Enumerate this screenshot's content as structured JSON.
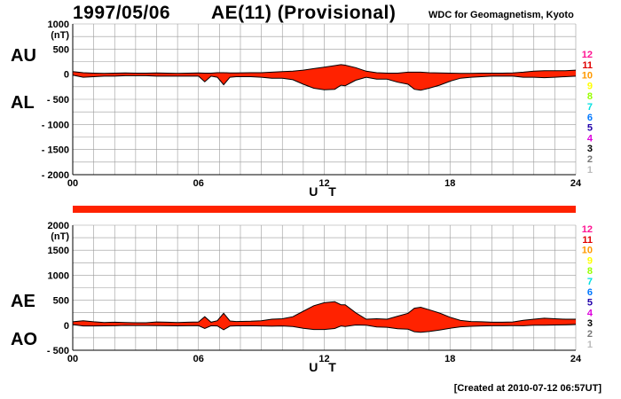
{
  "header": {
    "date": "1997/05/06",
    "title": "AE(11) (Provisional)",
    "source": "WDC for Geomagnetism, Kyoto",
    "created": "[Created at 2010-07-12 06:57UT]"
  },
  "colors": {
    "fill": "#ff2200",
    "grid": "#9a9a9a",
    "line": "#000000"
  },
  "station_legend": [
    {
      "label": "12",
      "color": "#ff1493"
    },
    {
      "label": "11",
      "color": "#e00000"
    },
    {
      "label": "10",
      "color": "#ff9900"
    },
    {
      "label": "9",
      "color": "#ffff00"
    },
    {
      "label": "8",
      "color": "#99ff00"
    },
    {
      "label": "7",
      "color": "#00e0e0"
    },
    {
      "label": "6",
      "color": "#0077ff"
    },
    {
      "label": "5",
      "color": "#2200aa"
    },
    {
      "label": "4",
      "color": "#dd00dd"
    },
    {
      "label": "3",
      "color": "#000000"
    },
    {
      "label": "2",
      "color": "#777777"
    },
    {
      "label": "1",
      "color": "#bbbbbb"
    }
  ],
  "chart_data": [
    {
      "type": "area",
      "unit": "(nT)",
      "xlabel": "U T",
      "xlim": [
        0,
        24
      ],
      "xticks": [
        "00",
        "06",
        "12",
        "18",
        "24"
      ],
      "ylim": [
        -2000,
        1000
      ],
      "yticks": [
        {
          "value": 1000,
          "label": "1000"
        },
        {
          "value": 500,
          "label": "500"
        },
        {
          "value": 0,
          "label": "0"
        },
        {
          "value": -500,
          "label": "- 500"
        },
        {
          "value": -1000,
          "label": "- 1000"
        },
        {
          "value": -1500,
          "label": "- 1500"
        },
        {
          "value": -2000,
          "label": "- 2000"
        }
      ],
      "upper_label": "AU",
      "lower_label": "AL",
      "x": [
        0,
        0.5,
        1,
        1.5,
        2,
        2.5,
        3,
        3.5,
        4,
        4.5,
        5,
        5.5,
        6,
        6.3,
        6.6,
        6.9,
        7.2,
        7.5,
        7.8,
        8.5,
        9,
        9.5,
        10,
        10.5,
        11,
        11.5,
        12,
        12.5,
        12.8,
        13,
        13.5,
        14,
        14.5,
        15,
        15.5,
        16,
        16.3,
        16.6,
        17,
        17.5,
        18,
        18.5,
        19,
        19.5,
        20,
        20.5,
        21,
        21.5,
        22,
        22.5,
        23,
        23.5,
        24
      ],
      "series": [
        {
          "name": "AU",
          "values": [
            50,
            30,
            20,
            15,
            20,
            25,
            20,
            20,
            25,
            20,
            15,
            20,
            25,
            20,
            20,
            30,
            30,
            25,
            25,
            30,
            30,
            40,
            50,
            60,
            80,
            110,
            140,
            170,
            190,
            180,
            130,
            60,
            30,
            20,
            20,
            40,
            40,
            40,
            30,
            25,
            20,
            15,
            15,
            20,
            20,
            20,
            25,
            40,
            60,
            70,
            70,
            70,
            80
          ]
        },
        {
          "name": "AL",
          "values": [
            -20,
            -60,
            -50,
            -40,
            -40,
            -30,
            -30,
            -30,
            -40,
            -40,
            -40,
            -40,
            -40,
            -150,
            -40,
            -60,
            -210,
            -60,
            -50,
            -50,
            -60,
            -80,
            -80,
            -110,
            -200,
            -280,
            -310,
            -300,
            -220,
            -230,
            -120,
            -60,
            -100,
            -100,
            -160,
            -200,
            -300,
            -320,
            -280,
            -220,
            -140,
            -80,
            -60,
            -50,
            -40,
            -40,
            -40,
            -60,
            -60,
            -70,
            -60,
            -50,
            -40
          ]
        }
      ]
    },
    {
      "type": "area",
      "unit": "(nT)",
      "xlabel": "U T",
      "xlim": [
        0,
        24
      ],
      "xticks": [
        "00",
        "06",
        "12",
        "18",
        "24"
      ],
      "ylim": [
        -500,
        2000
      ],
      "yticks": [
        {
          "value": 2000,
          "label": "2000"
        },
        {
          "value": 1500,
          "label": "1500"
        },
        {
          "value": 1000,
          "label": "1000"
        },
        {
          "value": 500,
          "label": "500"
        },
        {
          "value": 0,
          "label": "0"
        },
        {
          "value": -500,
          "label": "- 500"
        }
      ],
      "upper_label": "AE",
      "lower_label": "AO",
      "x": [
        0,
        0.5,
        1,
        1.5,
        2,
        2.5,
        3,
        3.5,
        4,
        4.5,
        5,
        5.5,
        6,
        6.3,
        6.6,
        6.9,
        7.2,
        7.5,
        7.8,
        8.5,
        9,
        9.5,
        10,
        10.5,
        11,
        11.5,
        12,
        12.5,
        12.8,
        13,
        13.5,
        14,
        14.5,
        15,
        15.5,
        16,
        16.3,
        16.6,
        17,
        17.5,
        18,
        18.5,
        19,
        19.5,
        20,
        20.5,
        21,
        21.5,
        22,
        22.5,
        23,
        23.5,
        24
      ],
      "series": [
        {
          "name": "AE",
          "values": [
            70,
            90,
            70,
            55,
            60,
            55,
            50,
            50,
            65,
            60,
            55,
            60,
            65,
            170,
            60,
            90,
            240,
            85,
            75,
            80,
            90,
            120,
            130,
            170,
            280,
            390,
            450,
            470,
            410,
            410,
            250,
            120,
            130,
            120,
            180,
            240,
            340,
            360,
            310,
            245,
            160,
            95,
            75,
            70,
            60,
            60,
            65,
            100,
            120,
            140,
            130,
            120,
            120
          ]
        },
        {
          "name": "AO",
          "values": [
            15,
            -15,
            -15,
            -12,
            -10,
            -3,
            -5,
            -5,
            -8,
            -10,
            -12,
            -10,
            -8,
            -65,
            -10,
            -15,
            -90,
            -18,
            -12,
            -10,
            -15,
            -20,
            -15,
            -25,
            -60,
            -85,
            -85,
            -65,
            -15,
            -25,
            5,
            0,
            -35,
            -40,
            -70,
            -80,
            -130,
            -140,
            -125,
            -97,
            -60,
            -32,
            -22,
            -15,
            -10,
            -10,
            -8,
            -10,
            0,
            0,
            5,
            10,
            20
          ]
        }
      ]
    }
  ]
}
